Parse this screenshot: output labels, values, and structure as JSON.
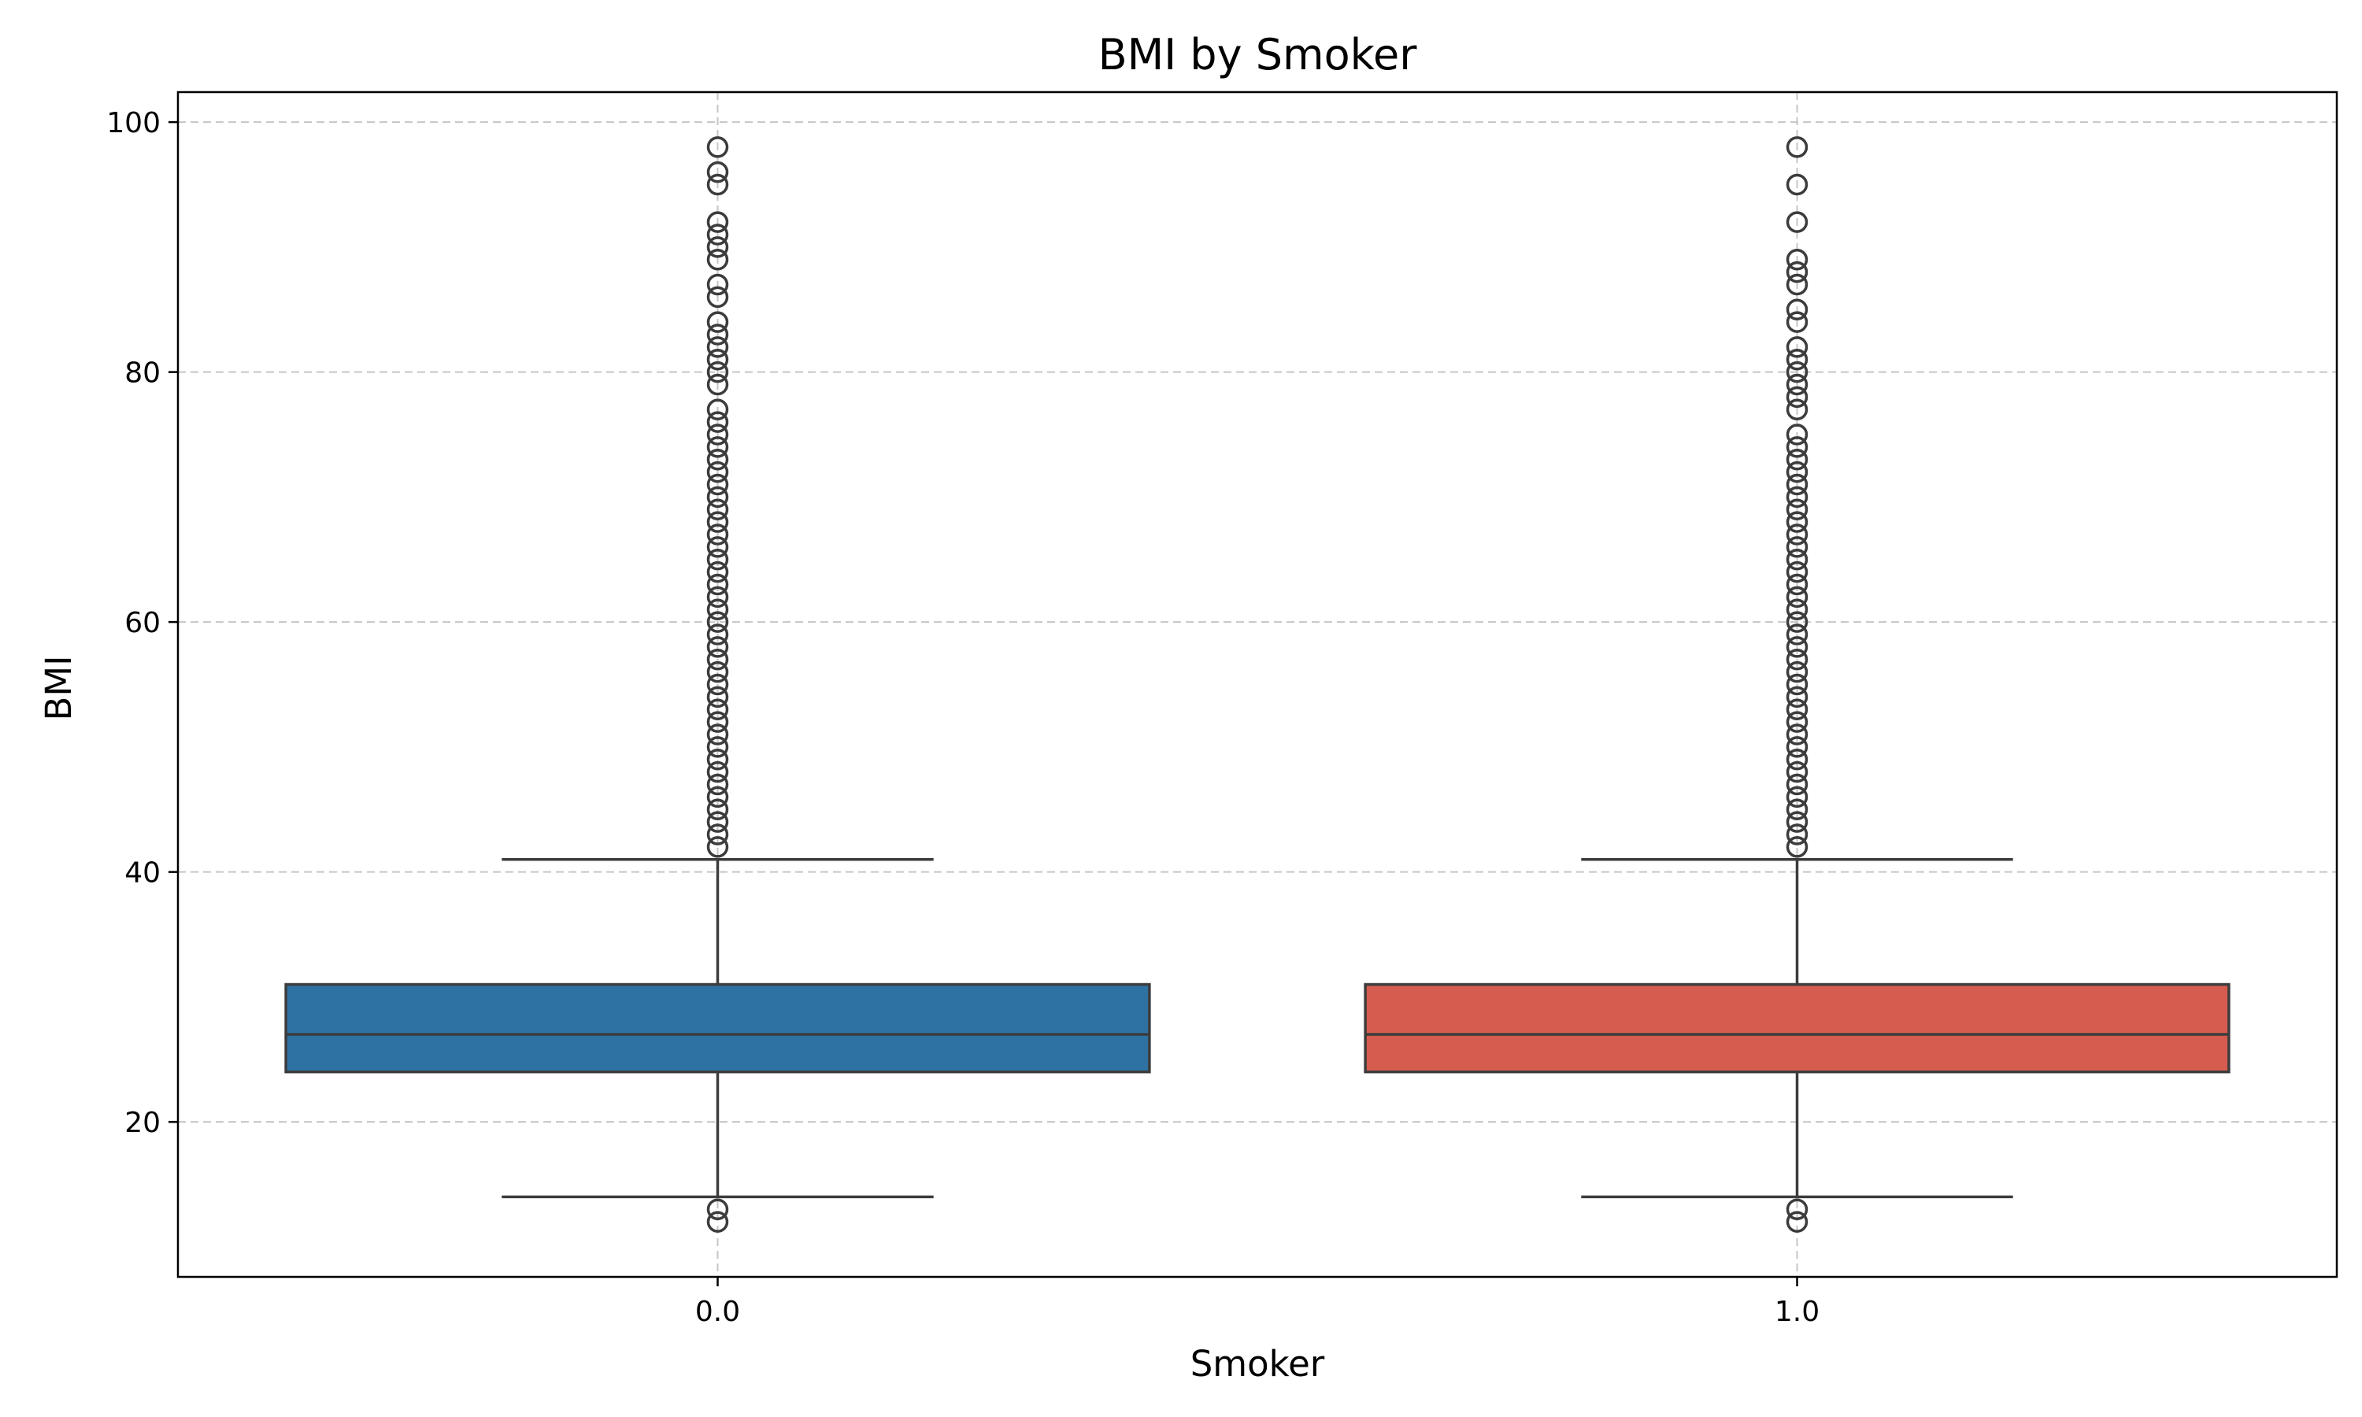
{
  "chart_data": {
    "type": "box",
    "title": "BMI by Smoker",
    "xlabel": "Smoker",
    "ylabel": "BMI",
    "categories": [
      "0.0",
      "1.0"
    ],
    "ylim": [
      7.6,
      102.4
    ],
    "yticks": [
      20,
      40,
      60,
      80,
      100
    ],
    "grid": true,
    "grid_style": "dashed",
    "colors": {
      "box_fill": [
        "#2e72a3",
        "#d55c4f"
      ],
      "lines": "#3c3c3c",
      "grid": "#c6c6c6"
    },
    "boxes": [
      {
        "category": "0.0",
        "q1": 24,
        "median": 27,
        "q3": 31,
        "whisker_low": 14,
        "whisker_high": 41,
        "outliers": [
          12,
          13,
          42,
          43,
          44,
          45,
          46,
          47,
          48,
          49,
          50,
          51,
          52,
          53,
          54,
          55,
          56,
          57,
          58,
          59,
          60,
          61,
          62,
          63,
          64,
          65,
          66,
          67,
          68,
          69,
          70,
          71,
          72,
          73,
          74,
          75,
          76,
          77,
          79,
          80,
          81,
          82,
          83,
          84,
          86,
          87,
          89,
          90,
          91,
          92,
          95,
          96,
          98
        ]
      },
      {
        "category": "1.0",
        "q1": 24,
        "median": 27,
        "q3": 31,
        "whisker_low": 14,
        "whisker_high": 41,
        "outliers": [
          12,
          13,
          42,
          43,
          44,
          45,
          46,
          47,
          48,
          49,
          50,
          51,
          52,
          53,
          54,
          55,
          56,
          57,
          58,
          59,
          60,
          61,
          62,
          63,
          64,
          65,
          66,
          67,
          68,
          69,
          70,
          71,
          72,
          73,
          74,
          75,
          77,
          78,
          79,
          80,
          81,
          82,
          84,
          85,
          87,
          88,
          89,
          92,
          95,
          98
        ]
      }
    ]
  }
}
